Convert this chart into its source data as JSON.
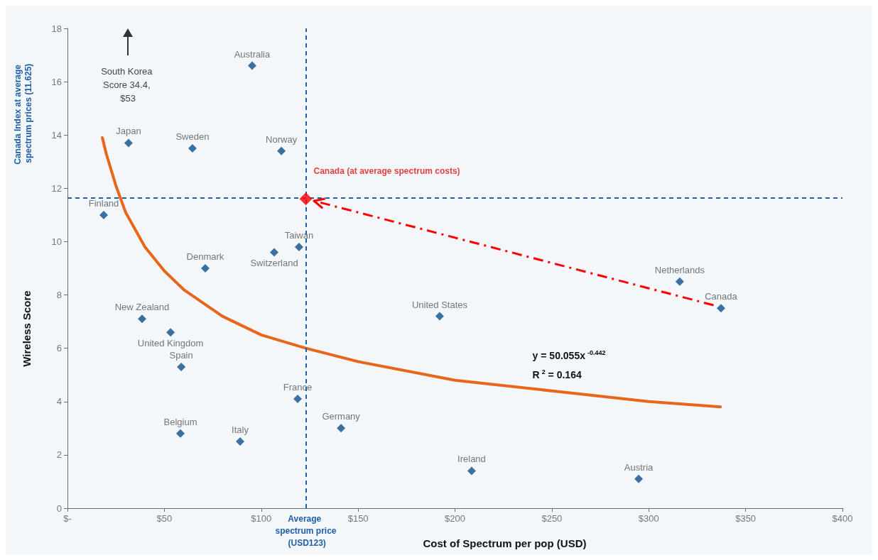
{
  "chart_data": {
    "type": "scatter",
    "xlabel": "Cost of Spectrum per pop (USD)",
    "ylabel": "Wireless Score",
    "xlim": [
      0,
      400
    ],
    "xticks": [
      {
        "value": 0,
        "label": "$-"
      },
      {
        "value": 50,
        "label": "$50"
      },
      {
        "value": 100,
        "label": "$100"
      },
      {
        "value": 150,
        "label": "$150"
      },
      {
        "value": 200,
        "label": "$200"
      },
      {
        "value": 250,
        "label": "$250"
      },
      {
        "value": 300,
        "label": "$300"
      },
      {
        "value": 350,
        "label": "$350"
      },
      {
        "value": 400,
        "label": "$400"
      }
    ],
    "ylim": [
      0,
      18
    ],
    "yticks": [
      0,
      2,
      4,
      6,
      8,
      10,
      12,
      14,
      16,
      18
    ],
    "grid": false,
    "legend": false,
    "marker": "diamond",
    "series": [
      {
        "color": "#0d4f8b",
        "x": [
          95.3,
          31.5,
          64.5,
          110.4,
          18.7,
          71.1,
          106.7,
          119.5,
          38.5,
          53.2,
          58.7,
          118.8,
          58.3,
          89.1,
          141.2,
          192.1,
          316,
          337.3,
          208.6,
          294.8
        ],
        "values": [
          16.6,
          13.7,
          13.5,
          13.4,
          11.0,
          9.0,
          9.6,
          9.8,
          7.1,
          6.6,
          5.3,
          4.1,
          2.8,
          2.5,
          3.0,
          7.2,
          8.5,
          7.5,
          1.4,
          1.1
        ],
        "value_labels": [
          "Australia",
          "Japan",
          "Sweden",
          "Norway",
          "Finland",
          "Denmark",
          "Switzerland",
          "Taiwan",
          "New Zealand",
          "United Kingdom",
          "Spain",
          "France",
          "Belgium",
          "Italy",
          "Germany",
          "United States",
          "Netherlands",
          "Canada",
          "Ireland",
          "Austria"
        ]
      },
      {
        "name": "Canada (at average spectrum costs)",
        "color": "#ff0000",
        "x": [
          123
        ],
        "values": [
          11.6
        ]
      },
      {
        "type": "line",
        "color": "#e8651a",
        "marker": "none",
        "x": [
          18,
          20,
          25,
          30,
          40,
          50,
          60,
          80,
          100,
          123,
          150,
          200,
          250,
          300,
          337
        ],
        "values": [
          13.9,
          13.3,
          12.1,
          11.1,
          9.8,
          8.9,
          8.2,
          7.2,
          6.5,
          6.0,
          5.5,
          4.8,
          4.4,
          4.0,
          3.8
        ]
      }
    ],
    "ref_lines": [
      {
        "axis": "x",
        "value": 123,
        "label": "Average spectrum price (USD123)",
        "color": "#1f5fa8",
        "line_style": "dashed"
      },
      {
        "axis": "y",
        "value": 11.625,
        "label": "Canada Index at average spectrum prices (11.625)",
        "color": "#1f5fa8",
        "line_style": "dashed"
      }
    ],
    "annotations": [
      "South Korea Score 34.4, $53",
      "y = 50.055x$^{-0.442}$",
      "R$^{2}$ = 0.164"
    ]
  }
}
